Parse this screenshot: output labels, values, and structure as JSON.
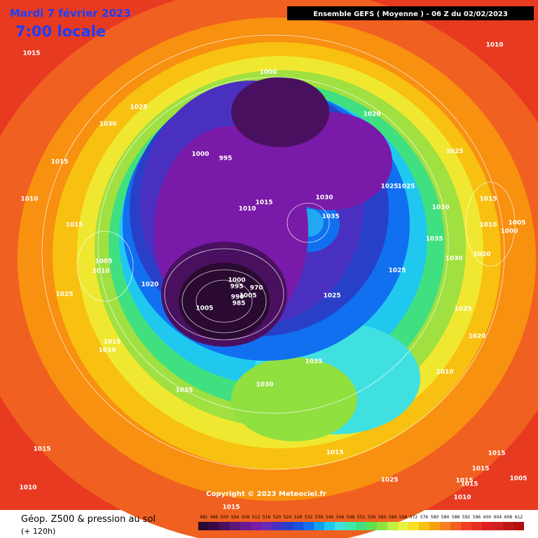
{
  "header": {
    "date": "Mardi 7 février 2023",
    "time": "7:00 locale",
    "model": "Ensemble GEFS  ( Moyenne )  -  06 Z du 02/02/2023"
  },
  "copyright": "Copyright © 2023 Meteociel.fr",
  "footer": {
    "title": "Géop. Z500 & pression au sol",
    "lead": "(+ 120h)"
  },
  "colorbar": {
    "labels": [
      492,
      496,
      500,
      504,
      508,
      512,
      516,
      520,
      524,
      528,
      532,
      536,
      540,
      544,
      548,
      552,
      556,
      560,
      564,
      568,
      572,
      576,
      580,
      584,
      588,
      592,
      596,
      600,
      604,
      608,
      612
    ],
    "colors": [
      "#2a0a30",
      "#3a0a45",
      "#4a1060",
      "#5c1878",
      "#6a1a90",
      "#7a1aa8",
      "#6a2ab8",
      "#4a30c0",
      "#2840c8",
      "#1850e0",
      "#1070f0",
      "#10a0f0",
      "#20c8f0",
      "#40e0e0",
      "#40e8b0",
      "#40e080",
      "#60e050",
      "#90e040",
      "#c0f040",
      "#e8f040",
      "#f8e020",
      "#f8c010",
      "#f8a010",
      "#f88020",
      "#f06020",
      "#f04020",
      "#e83020",
      "#e02020",
      "#d02020",
      "#c01818",
      "#b01010"
    ]
  },
  "isobars": [
    1015,
    1010,
    1000,
    1025,
    1030,
    1020,
    1000,
    995,
    1015,
    1025,
    1025,
    1025,
    1010,
    1030,
    1015,
    1010,
    1015,
    1030,
    1035,
    1015,
    1010,
    1005,
    1000,
    1035,
    1030,
    1020,
    1005,
    1010,
    1025,
    1000,
    995,
    970,
    1020,
    990,
    1005,
    985,
    1025,
    1025,
    1025,
    1005,
    1020,
    1015,
    1010,
    1035,
    1030,
    1010,
    1035,
    1015,
    1015,
    1015,
    1015,
    1015,
    1015,
    1005,
    1025,
    1010,
    1010,
    1015
  ]
}
